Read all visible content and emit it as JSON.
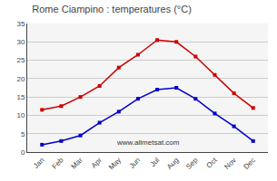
{
  "chart_data": {
    "type": "line",
    "title": "Rome Ciampino : temperatures (°C)",
    "categories": [
      "Jan",
      "Feb",
      "Mar",
      "Apr",
      "May",
      "Jun",
      "Jul",
      "Aug",
      "Sep",
      "Oct",
      "Nov",
      "Dec"
    ],
    "series": [
      {
        "color": "#cc0000",
        "values": [
          11.5,
          12.5,
          15.0,
          18.0,
          23.0,
          26.5,
          30.5,
          30.0,
          26.0,
          21.0,
          16.0,
          12.0
        ]
      },
      {
        "color": "#0000cc",
        "values": [
          2.0,
          3.0,
          4.5,
          8.0,
          11.0,
          14.5,
          17.0,
          17.5,
          14.5,
          10.5,
          7.0,
          3.0
        ]
      }
    ],
    "marker": "square",
    "ylim": [
      0,
      35
    ],
    "yticks": [
      0,
      5,
      10,
      15,
      20,
      25,
      30,
      35
    ],
    "grid": true,
    "annotations": [
      "www.allmetsat.com"
    ]
  }
}
